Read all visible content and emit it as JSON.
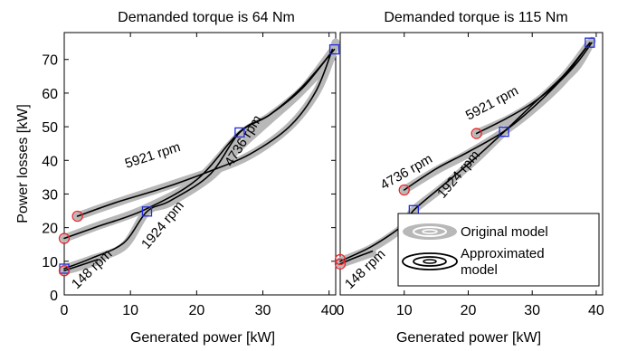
{
  "chart_data": [
    {
      "type": "line",
      "title": "Demanded torque is 64 Nm",
      "xlabel": "Generated power [kW]",
      "ylabel": "Power losses [kW]",
      "xlim": [
        0,
        41
      ],
      "ylim": [
        0,
        78
      ],
      "xticks": [
        "0",
        "10",
        "20",
        "30",
        "40"
      ],
      "yticks": [
        "0",
        "10",
        "20",
        "30",
        "40",
        "50",
        "60",
        "70"
      ],
      "series": [
        {
          "name": "5921 rpm",
          "original": [
            [
              2.0,
              23.4
            ],
            [
              8,
              27.5
            ],
            [
              15,
              32.0
            ],
            [
              22,
              36.6
            ],
            [
              28,
              41.5
            ],
            [
              34,
              50.0
            ],
            [
              38,
              60.0
            ],
            [
              40.2,
              70.0
            ],
            [
              41.0,
              75.0
            ]
          ],
          "approx": [
            [
              2.0,
              23.4
            ],
            [
              8,
              27.6
            ],
            [
              15,
              31.8
            ],
            [
              22,
              36.8
            ],
            [
              28,
              41.8
            ],
            [
              34,
              50.0
            ],
            [
              38,
              60.5
            ],
            [
              40.5,
              73.0
            ]
          ],
          "marker": "circle",
          "endpoints": [
            [
              2.0,
              23.4
            ]
          ]
        },
        {
          "name": "4736 rpm",
          "original": [
            [
              0,
              16.8
            ],
            [
              5,
              20.5
            ],
            [
              12,
              25.5
            ],
            [
              20,
              34.0
            ],
            [
              26.5,
              47.5
            ],
            [
              31,
              53.0
            ],
            [
              36,
              61.0
            ],
            [
              40.0,
              70.0
            ],
            [
              41.0,
              75.0
            ]
          ],
          "approx": [
            [
              0,
              16.8
            ],
            [
              5,
              20.3
            ],
            [
              12,
              25.2
            ],
            [
              20,
              34.2
            ],
            [
              26.5,
              48.5
            ],
            [
              31,
              53.5
            ],
            [
              36,
              61.5
            ],
            [
              40.5,
              72.5
            ]
          ],
          "marker": "circle",
          "endpoints": [
            [
              0,
              16.8
            ]
          ]
        },
        {
          "name": "1924 rpm",
          "original": [
            [
              0,
              7.8
            ],
            [
              4,
              10.5
            ],
            [
              9,
              14.5
            ],
            [
              12.5,
              24.8
            ],
            [
              16,
              27.5
            ],
            [
              22,
              35.0
            ],
            [
              26.5,
              44.0
            ],
            [
              31,
              52.0
            ],
            [
              36,
              61.0
            ],
            [
              40.5,
              72.5
            ]
          ],
          "approx": [
            [
              0,
              7.8
            ],
            [
              4,
              10.8
            ],
            [
              9,
              15.5
            ],
            [
              12.5,
              24.8
            ],
            [
              16,
              28.0
            ],
            [
              22,
              35.8
            ],
            [
              26.5,
              48.3
            ],
            [
              31,
              53.5
            ],
            [
              36,
              62.0
            ],
            [
              40.8,
              73.0
            ]
          ],
          "marker": "square",
          "endpoints": [
            [
              0,
              7.8
            ],
            [
              12.5,
              24.8
            ],
            [
              26.5,
              48.3
            ],
            [
              40.8,
              73.0
            ]
          ]
        },
        {
          "name": "148 rpm",
          "original": [
            [
              0,
              7.2
            ],
            [
              2,
              8.2
            ],
            [
              5,
              10.0
            ]
          ],
          "approx": [
            [
              0,
              7.2
            ],
            [
              2,
              8.5
            ],
            [
              5,
              10.5
            ]
          ],
          "marker": "circle",
          "endpoints": [
            [
              0,
              7.2
            ]
          ]
        }
      ],
      "annotations": [
        "5921 rpm",
        "4736 rpm",
        "1924 rpm",
        "148 rpm"
      ]
    },
    {
      "type": "line",
      "title": "Demanded torque is 115 Nm",
      "xlabel": "Generated power [kW]",
      "ylabel": "",
      "xlim": [
        0,
        41
      ],
      "ylim": [
        0,
        78
      ],
      "xticks": [
        "0",
        "10",
        "20",
        "30",
        "40"
      ],
      "yticks": [],
      "series": [
        {
          "name": "5921 rpm",
          "original": [
            [
              21.3,
              48.0
            ],
            [
              26,
              52.0
            ],
            [
              30,
              56.5
            ],
            [
              34,
              62.5
            ],
            [
              37,
              68.0
            ],
            [
              39.3,
              75.5
            ]
          ],
          "approx": [
            [
              21.3,
              48.0
            ],
            [
              26,
              52.5
            ],
            [
              30,
              57.0
            ],
            [
              34,
              63.0
            ],
            [
              37,
              69.0
            ],
            [
              39.3,
              75.0
            ]
          ],
          "marker": "circle",
          "endpoints": [
            [
              21.3,
              48.0
            ]
          ]
        },
        {
          "name": "4736 rpm",
          "original": [
            [
              10.0,
              31.2
            ],
            [
              15,
              37.0
            ],
            [
              20,
              42.0
            ],
            [
              25.5,
              48.5
            ],
            [
              30,
              55.0
            ],
            [
              35,
              64.0
            ],
            [
              39,
              74.5
            ]
          ],
          "approx": [
            [
              10.0,
              31.2
            ],
            [
              15,
              37.5
            ],
            [
              20,
              42.5
            ],
            [
              25.5,
              48.5
            ],
            [
              30,
              55.5
            ],
            [
              35,
              65.0
            ],
            [
              39.0,
              75.0
            ]
          ],
          "marker": "circle",
          "endpoints": [
            [
              10.0,
              31.2
            ]
          ]
        },
        {
          "name": "1924 rpm",
          "original": [
            [
              0,
              10.0
            ],
            [
              5,
              14.0
            ],
            [
              10,
              20.5
            ],
            [
              11.5,
              25.2
            ],
            [
              16,
              32.0
            ],
            [
              21,
              40.0
            ],
            [
              25.6,
              48.5
            ],
            [
              30,
              56.0
            ],
            [
              35,
              65.0
            ],
            [
              39,
              75.0
            ]
          ],
          "approx": [
            [
              0,
              10.0
            ],
            [
              5,
              14.5
            ],
            [
              10,
              21.0
            ],
            [
              11.5,
              25.2
            ],
            [
              16,
              32.5
            ],
            [
              21,
              40.5
            ],
            [
              25.6,
              48.5
            ],
            [
              30,
              56.5
            ],
            [
              35,
              65.5
            ],
            [
              39.0,
              75.0
            ]
          ],
          "marker": "square",
          "endpoints": [
            [
              11.5,
              25.2
            ],
            [
              25.6,
              48.5
            ],
            [
              39.0,
              75.0
            ]
          ]
        },
        {
          "name": "148 rpm",
          "original": [
            [
              0,
              9.2
            ],
            [
              2,
              10.5
            ],
            [
              5,
              12.5
            ]
          ],
          "approx": [
            [
              0,
              9.2
            ],
            [
              2,
              10.8
            ],
            [
              5,
              13.0
            ]
          ],
          "marker": "circle",
          "endpoints": [
            [
              0,
              9.2
            ],
            [
              0,
              10.5
            ]
          ]
        }
      ],
      "annotations": [
        "5921 rpm",
        "4736 rpm",
        "1924 rpm",
        "148 rpm"
      ],
      "legend": {
        "placement": "bottom-right",
        "entries": [
          "Original model",
          "Approximated model"
        ]
      }
    }
  ],
  "colors": {
    "original": "#b8b8b8",
    "approx": "#000000",
    "circle_marker": "#e8262a",
    "square_marker": "#1f2bd8"
  }
}
